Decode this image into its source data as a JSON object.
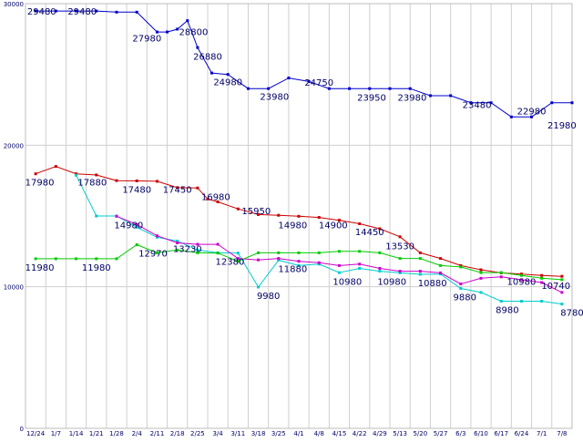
{
  "chart_data": {
    "type": "line",
    "title": "",
    "xlabel": "",
    "ylabel": "",
    "ylim": [
      0,
      30000
    ],
    "grid": true,
    "y_ticks": [
      0,
      10000,
      20000,
      30000
    ],
    "y_tick_labels": [
      "0",
      "10000",
      "20000",
      "30000"
    ],
    "categories": [
      "12/24",
      "1/7",
      "1/14",
      "1/21",
      "1/28",
      "2/4",
      "2/11",
      "2/18",
      "2/25",
      "3/4",
      "3/11",
      "3/18",
      "3/25",
      "4/1",
      "4/8",
      "4/15",
      "4/22",
      "4/29",
      "5/13",
      "5/20",
      "5/27",
      "6/3",
      "6/10",
      "6/17",
      "6/24",
      "7/1",
      "7/8"
    ],
    "x_tick_labels": [
      "12/24",
      "1/7",
      "1/14",
      "1/21",
      "1/28",
      "2/4",
      "2/11",
      "2/18",
      "2/25",
      "3/4",
      "3/11",
      "3/18",
      "3/25",
      "4/1",
      "4/8",
      "4/15",
      "4/22",
      "4/29",
      "5/13",
      "5/20",
      "5/27",
      "6/3",
      "6/10",
      "6/17",
      "6/24",
      "7/1",
      "7/8"
    ],
    "series": [
      {
        "name": "blue",
        "color": "#0000cc",
        "x": [
          0.0,
          1.0,
          2.0,
          3.0,
          4.0,
          5.0,
          6.0,
          6.5,
          7.0,
          7.5,
          8.0,
          8.7,
          9.5,
          10.5,
          11.5,
          12.5,
          13.5,
          14.5,
          15.5,
          16.5,
          17.5,
          18.5,
          19.5,
          20.5,
          21.5,
          22.5,
          23.5,
          24.5,
          25.5,
          26.5
        ],
        "values": [
          29480,
          29480,
          29480,
          29480,
          29400,
          29400,
          28000,
          28000,
          28200,
          28800,
          26900,
          25100,
          25000,
          24000,
          24000,
          24750,
          24500,
          24000,
          24000,
          24000,
          24000,
          24000,
          23500,
          23500,
          23000,
          23000,
          22000,
          22000,
          23000,
          23000
        ]
      },
      {
        "name": "red",
        "color": "#cc0000",
        "x": [
          0.0,
          1.0,
          2.0,
          3.0,
          4.0,
          5.0,
          6.0,
          7.0,
          8.0,
          8.5,
          9.0,
          10.0,
          11.0,
          12.0,
          13.0,
          14.0,
          15.0,
          16.0,
          17.0,
          18.0,
          19.0,
          20.0,
          21.0,
          22.0,
          23.0,
          24.0,
          25.0,
          26.0
        ],
        "values": [
          17980,
          18500,
          17980,
          17900,
          17500,
          17480,
          17450,
          17000,
          16980,
          16200,
          16000,
          15500,
          15100,
          15050,
          14980,
          14900,
          14700,
          14450,
          14100,
          13530,
          12400,
          12000,
          11500,
          11200,
          10980,
          10900,
          10800,
          10740
        ]
      },
      {
        "name": "cyan",
        "color": "#00cccc",
        "x": [
          2.0,
          3.0,
          4.0,
          5.0,
          6.0,
          7.0,
          8.0,
          9.0,
          10.0,
          11.0,
          12.0,
          13.0,
          14.0,
          15.0,
          16.0,
          17.0,
          18.0,
          19.0,
          20.0,
          21.0,
          22.0,
          23.0,
          24.0,
          25.0,
          26.0
        ],
        "values": [
          17880,
          15000,
          15000,
          14200,
          13500,
          13230,
          12600,
          12400,
          12380,
          9980,
          11880,
          11500,
          11600,
          11000,
          11300,
          11100,
          10980,
          10880,
          10900,
          9880,
          9600,
          8980,
          8980,
          8980,
          8780
        ]
      },
      {
        "name": "magenta",
        "color": "#cc00cc",
        "x": [
          4.0,
          5.0,
          6.0,
          7.0,
          8.0,
          9.0,
          10.0,
          11.0,
          12.0,
          13.0,
          14.0,
          15.0,
          16.0,
          17.0,
          18.0,
          19.0,
          20.0,
          21.0,
          22.0,
          23.0,
          24.0,
          25.0,
          26.0
        ],
        "values": [
          14980,
          14400,
          13600,
          13100,
          13000,
          13000,
          12000,
          11900,
          12000,
          11800,
          11700,
          11500,
          11600,
          11300,
          11100,
          11100,
          10980,
          10200,
          10600,
          10700,
          10500,
          10300,
          9600
        ]
      },
      {
        "name": "green",
        "color": "#00cc00",
        "x": [
          0.0,
          1.0,
          2.0,
          3.0,
          4.0,
          5.0,
          6.0,
          7.0,
          8.0,
          9.0,
          10.0,
          11.0,
          12.0,
          13.0,
          14.0,
          15.0,
          16.0,
          17.0,
          18.0,
          19.0,
          20.0,
          21.0,
          22.0,
          23.0,
          24.0,
          25.0,
          26.0
        ],
        "values": [
          11980,
          11980,
          11980,
          11980,
          11980,
          12970,
          12400,
          12600,
          12400,
          12380,
          11800,
          12400,
          12400,
          12400,
          12400,
          12500,
          12500,
          12400,
          12000,
          12000,
          11500,
          11400,
          11000,
          11000,
          10800,
          10600,
          10500
        ]
      }
    ],
    "annotations": [
      {
        "text": "29480",
        "x": 0.3,
        "y": 29480
      },
      {
        "text": "29480",
        "x": 2.3,
        "y": 29480
      },
      {
        "text": "27980",
        "x": 5.5,
        "y": 27600
      },
      {
        "text": "28800",
        "x": 7.8,
        "y": 28050
      },
      {
        "text": "26880",
        "x": 8.5,
        "y": 26300
      },
      {
        "text": "24980",
        "x": 9.5,
        "y": 24500
      },
      {
        "text": "23980",
        "x": 11.8,
        "y": 23450
      },
      {
        "text": "24750",
        "x": 14.0,
        "y": 24450
      },
      {
        "text": "23950",
        "x": 16.6,
        "y": 23400
      },
      {
        "text": "23980",
        "x": 18.6,
        "y": 23400
      },
      {
        "text": "23480",
        "x": 21.8,
        "y": 22900
      },
      {
        "text": "22980",
        "x": 24.5,
        "y": 22450
      },
      {
        "text": "21980",
        "x": 26.0,
        "y": 21450
      },
      {
        "text": "17980",
        "x": 0.2,
        "y": 17400
      },
      {
        "text": "17880",
        "x": 2.8,
        "y": 17400
      },
      {
        "text": "17480",
        "x": 5.0,
        "y": 16900
      },
      {
        "text": "17450",
        "x": 7.0,
        "y": 16900
      },
      {
        "text": "16980",
        "x": 8.9,
        "y": 16400
      },
      {
        "text": "15950",
        "x": 10.9,
        "y": 15400
      },
      {
        "text": "14980",
        "x": 12.7,
        "y": 14400
      },
      {
        "text": "14900",
        "x": 14.7,
        "y": 14400
      },
      {
        "text": "14450",
        "x": 16.5,
        "y": 13900
      },
      {
        "text": "13530",
        "x": 18.0,
        "y": 12900
      },
      {
        "text": "14980",
        "x": 4.6,
        "y": 14400
      },
      {
        "text": "12970",
        "x": 5.8,
        "y": 12400
      },
      {
        "text": "13230",
        "x": 7.5,
        "y": 12700
      },
      {
        "text": "12380",
        "x": 9.6,
        "y": 11800
      },
      {
        "text": "11880",
        "x": 12.7,
        "y": 11300
      },
      {
        "text": "9980",
        "x": 11.5,
        "y": 9400
      },
      {
        "text": "10980",
        "x": 15.4,
        "y": 10400
      },
      {
        "text": "10980",
        "x": 17.6,
        "y": 10400
      },
      {
        "text": "10880",
        "x": 19.6,
        "y": 10300
      },
      {
        "text": "9880",
        "x": 21.2,
        "y": 9300
      },
      {
        "text": "8980",
        "x": 23.3,
        "y": 8400
      },
      {
        "text": "10980",
        "x": 24.0,
        "y": 10400
      },
      {
        "text": "10740",
        "x": 25.7,
        "y": 10100
      },
      {
        "text": "8780",
        "x": 26.5,
        "y": 8200
      },
      {
        "text": "11980",
        "x": 0.2,
        "y": 11400
      },
      {
        "text": "11980",
        "x": 3.0,
        "y": 11400
      }
    ]
  }
}
